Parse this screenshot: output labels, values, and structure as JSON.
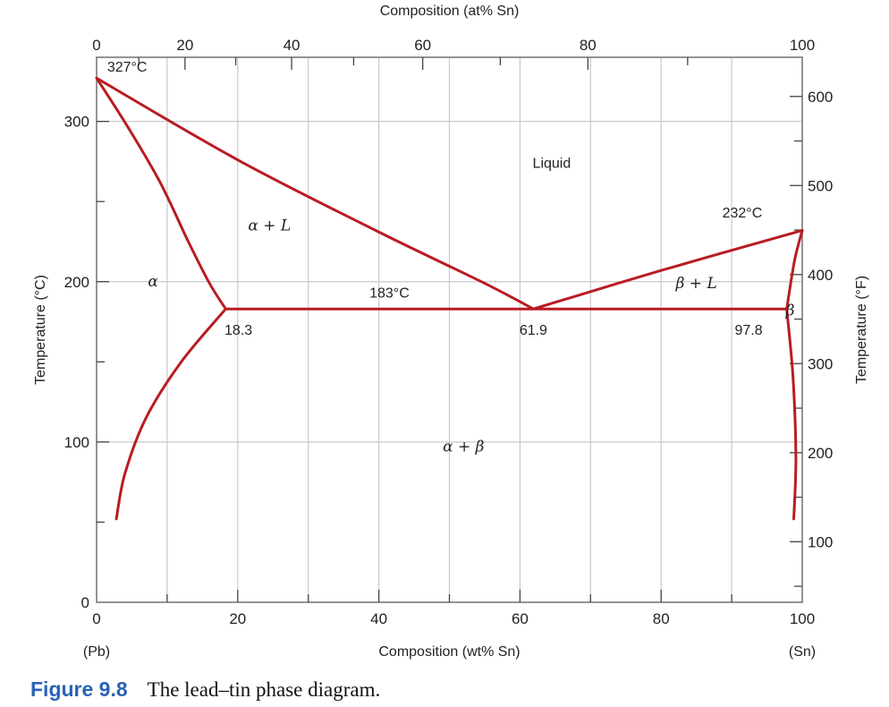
{
  "chart_data": {
    "type": "line",
    "title": "",
    "xlabel": "Composition (wt% Sn)",
    "x2label": "Composition (at% Sn)",
    "ylabel": "Temperature (°C)",
    "y2label": "Temperature (°F)",
    "xlim": [
      0,
      100
    ],
    "ylim": [
      0,
      340
    ],
    "y2lim": [
      32,
      644
    ],
    "grid": true,
    "x_ticks": [
      0,
      20,
      40,
      60,
      80,
      100
    ],
    "x_tick_labels": [
      "0",
      "20",
      "40",
      "60",
      "80",
      "100"
    ],
    "x2_ticks": [
      0,
      20,
      40,
      60,
      80,
      100
    ],
    "x2_tick_labels": [
      "0",
      "20",
      "40",
      "60",
      "80",
      "100"
    ],
    "y_ticks": [
      0,
      100,
      200,
      300
    ],
    "y_tick_labels": [
      "0",
      "100",
      "200",
      "300"
    ],
    "y2_ticks": [
      100,
      200,
      300,
      400,
      500,
      600
    ],
    "y2_tick_labels": [
      "100",
      "200",
      "300",
      "400",
      "500",
      "600"
    ],
    "x_end_labels": {
      "left": "(Pb)",
      "right": "(Sn)"
    },
    "line_color": "#b81c22",
    "series": [
      {
        "x": [
          0,
          4.5,
          9,
          13,
          16,
          18.3
        ],
        "y": [
          327,
          296,
          262,
          225,
          199,
          183
        ]
      },
      {
        "x": [
          18.3,
          12,
          7,
          4,
          2.8
        ],
        "y": [
          183,
          150,
          115,
          80,
          52
        ]
      },
      {
        "x": [
          0,
          20,
          40,
          55,
          61.9
        ],
        "y": [
          327,
          276,
          231,
          199,
          183
        ]
      },
      {
        "x": [
          18.3,
          97.8
        ],
        "y": [
          183,
          183
        ]
      },
      {
        "x": [
          61.9,
          80,
          100
        ],
        "y": [
          183,
          207,
          232
        ]
      },
      {
        "x": [
          100,
          98.9,
          97.8
        ],
        "y": [
          232,
          213,
          183
        ]
      },
      {
        "x": [
          97.8,
          98.7,
          99.1,
          98.8
        ],
        "y": [
          183,
          140,
          90,
          52
        ]
      }
    ],
    "annotations": [
      {
        "text": "327°C",
        "x": 1.5,
        "y": 331
      },
      {
        "text": "232°C",
        "x": 91.5,
        "y": 240
      },
      {
        "text": "183°C",
        "x": 41.5,
        "y": 190
      },
      {
        "text": "18.3",
        "x": 20.1,
        "y": 167
      },
      {
        "text": "61.9",
        "x": 61.9,
        "y": 167
      },
      {
        "text": "97.8",
        "x": 92.4,
        "y": 167
      },
      {
        "text": "Liquid",
        "x": 64.5,
        "y": 271
      },
      {
        "text": "α + L",
        "x": 24.5,
        "y": 232
      },
      {
        "text": "β + L",
        "x": 85,
        "y": 196
      },
      {
        "text": "α",
        "x": 8,
        "y": 197
      },
      {
        "text": "β",
        "x": 98.3,
        "y": 179
      },
      {
        "text": "α + β",
        "x": 52,
        "y": 94
      }
    ]
  },
  "caption": {
    "label": "Figure 9.8",
    "text": "The lead–tin phase diagram."
  }
}
